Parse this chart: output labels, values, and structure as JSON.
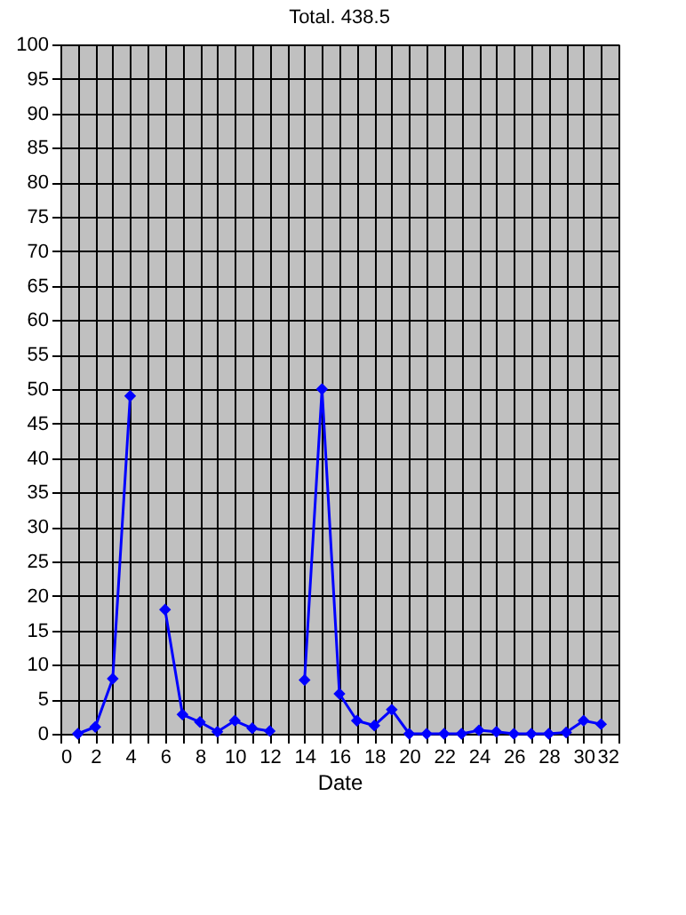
{
  "chart_data": {
    "type": "line",
    "title": "Total. 438.5",
    "xlabel": "Date",
    "x": [
      1,
      2,
      3,
      4,
      5,
      6,
      7,
      8,
      9,
      10,
      11,
      12,
      13,
      14,
      15,
      16,
      17,
      18,
      19,
      20,
      21,
      22,
      23,
      24,
      25,
      26,
      27,
      28,
      29,
      30,
      31
    ],
    "series": [
      {
        "color": "#0000ff",
        "values": [
          0,
          1,
          8,
          49,
          null,
          18,
          2.8,
          1.7,
          0.3,
          1.9,
          0.8,
          0.4,
          null,
          7.8,
          50,
          5.8,
          1.9,
          1.2,
          3.5,
          0,
          0,
          0,
          0,
          0.5,
          0.3,
          0,
          0,
          0,
          0.2,
          1.9,
          1.4
        ]
      }
    ],
    "xlim": [
      0,
      32
    ],
    "xticks": [
      0,
      {
        "value": 1,
        "label": null
      },
      2,
      {
        "value": 3,
        "label": null
      },
      4,
      {
        "value": 5,
        "label": null
      },
      6,
      {
        "value": 7,
        "label": null
      },
      8,
      {
        "value": 9,
        "label": null
      },
      10,
      {
        "value": 11,
        "label": null
      },
      12,
      {
        "value": 13,
        "label": null
      },
      14,
      {
        "value": 15,
        "label": null
      },
      16,
      {
        "value": 17,
        "label": null
      },
      18,
      {
        "value": 19,
        "label": null
      },
      20,
      {
        "value": 21,
        "label": null
      },
      22,
      {
        "value": 23,
        "label": null
      },
      24,
      {
        "value": 25,
        "label": null
      },
      26,
      {
        "value": 27,
        "label": null
      },
      28,
      {
        "value": 29,
        "label": null
      },
      30,
      {
        "value": 31,
        "label": null
      },
      32
    ],
    "ylim": [
      0,
      100
    ],
    "yticks": [
      0,
      5,
      10,
      15,
      20,
      25,
      30,
      35,
      40,
      45,
      50,
      55,
      60,
      65,
      70,
      75,
      80,
      85,
      90,
      95,
      100
    ],
    "grid": true,
    "marker": "diamond",
    "line_style": "solid"
  }
}
